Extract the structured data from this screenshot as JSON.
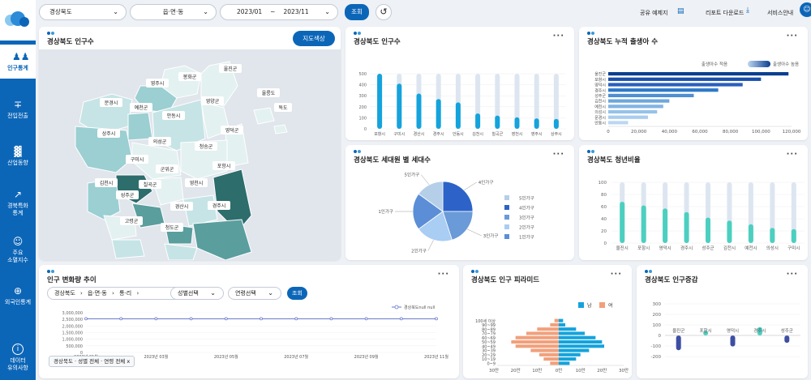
{
  "sidebar": {
    "items": [
      {
        "label": "인구통계",
        "icon": "people-icon"
      },
      {
        "label": "전입전출",
        "icon": "plus-minus-icon"
      },
      {
        "label": "산업동향",
        "icon": "factory-icon"
      },
      {
        "label": "경북특화\n통계",
        "icon": "chart-up-icon"
      },
      {
        "label": "주요\n소멸지수",
        "icon": "person-gear-icon"
      },
      {
        "label": "외국인통계",
        "icon": "globe-people-icon"
      },
      {
        "label": "데이터\n유의사항",
        "icon": "info-icon"
      }
    ]
  },
  "topbar": {
    "region": "경상북도",
    "district": "읍·면·동",
    "start": "2023/01",
    "tilde": "~",
    "end": "2023/11",
    "search": "조회",
    "share": "공유 예제지",
    "report": "리포트 다운로드",
    "guide": "서비스안내"
  },
  "map": {
    "title": "경상북도 인구수",
    "button": "지도색상",
    "regions": [
      "울진군",
      "봉화군",
      "영주시",
      "울릉도",
      "독도",
      "문경시",
      "예천군",
      "영양군",
      "안동시",
      "상주시",
      "영덕군",
      "의성군",
      "청송군",
      "구미시",
      "군위군",
      "포항시",
      "김천시",
      "칠곡군",
      "영천시",
      "성주군",
      "경산시",
      "경주시",
      "고령군",
      "청도군"
    ]
  },
  "pop": {
    "title": "경상북도 인구수",
    "yticks": [
      "500",
      "400",
      "300",
      "200",
      "100",
      "0"
    ]
  },
  "birth": {
    "title": "경상북도 누적 출생아 수",
    "legend_low": "출생아수 적음",
    "legend_high": "출생아수 높음",
    "xticks": [
      "0",
      "20,000",
      "40,000",
      "60,000",
      "80,000",
      "100,000",
      "120,000"
    ]
  },
  "household": {
    "title": "경상북도 세대원 별 세대수",
    "labels": [
      "4인가구",
      "5인가구",
      "1인가구",
      "2인가구",
      "3인가구"
    ],
    "legend": [
      "5인가구",
      "4인가구",
      "3인가구",
      "2인가구",
      "1인가구"
    ]
  },
  "youth": {
    "title": "경상북도 청년비율",
    "yticks": [
      "100",
      "80",
      "60",
      "40",
      "20",
      "0"
    ]
  },
  "trend": {
    "title": "인구 변화량 추이",
    "b1": "경상북도",
    "b2": "읍·면·동",
    "b3": "통·리",
    "s1": "성별선택",
    "s2": "연령선택",
    "search": "조회",
    "legend": "경상북도null null",
    "yticks": [
      "3,000,000",
      "2,500,000",
      "2,000,000",
      "1,500,000",
      "1,000,000",
      "500,000",
      "0"
    ],
    "xticks": [
      "2023년 01월",
      "2023년 03월",
      "2023년 05월",
      "2023년 07월",
      "2023년 09월",
      "2023년 11월"
    ],
    "tag": "경상북도 · 성별 전체 · 연령 전체",
    "tag_x": "x"
  },
  "pyramid": {
    "title": "경상북도 인구 피라미드",
    "male": "남",
    "female": "여",
    "ages": [
      "100세 이상",
      "90~99",
      "80~89",
      "70~79",
      "60~69",
      "50~59",
      "40~49",
      "30~39",
      "20~29",
      "10~19",
      "0~9"
    ],
    "xticks": [
      "30만",
      "20만",
      "10만",
      "0만",
      "10만",
      "20만",
      "30만"
    ]
  },
  "change": {
    "title": "경상북도 인구증감",
    "yticks": [
      "300",
      "200",
      "100",
      "0",
      "-100",
      "-200"
    ],
    "categories": [
      "울진군",
      "포항시",
      "영덕시",
      "경주시",
      "성주군"
    ]
  },
  "chart_data": [
    {
      "type": "bar",
      "title": "경상북도 인구수",
      "categories": [
        "포항시",
        "구미시",
        "경산시",
        "경주시",
        "안동시",
        "김천시",
        "칠곡군",
        "영천시",
        "영주시",
        "상주시"
      ],
      "values": [
        500,
        410,
        320,
        270,
        240,
        140,
        120,
        105,
        95,
        90
      ],
      "ylim": [
        0,
        500
      ]
    },
    {
      "type": "bar",
      "title": "경상북도 누적 출생아 수",
      "categories": [
        "울진군",
        "포항시",
        "영덕시",
        "경주시",
        "성주군",
        "김천시",
        "예천시",
        "의성시",
        "문경시",
        "안동시"
      ],
      "values": [
        118000,
        100000,
        88000,
        72000,
        56000,
        40000,
        36000,
        32000,
        26000,
        13000
      ],
      "xlim": [
        0,
        120000
      ]
    },
    {
      "type": "pie",
      "title": "경상북도 세대원 별 세대수",
      "labels": [
        "4인가구",
        "3인가구",
        "2인가구",
        "1인가구",
        "5인가구"
      ],
      "values": [
        25,
        20,
        20,
        20,
        15
      ],
      "colors": [
        "#2d63c8",
        "#6a9ad8",
        "#a9cdf3",
        "#5b8ed6",
        "#b5cfe9"
      ]
    },
    {
      "type": "bar",
      "title": "경상북도 청년비율",
      "categories": [
        "울진시",
        "포항시",
        "영덕시",
        "경주시",
        "성주군",
        "김천시",
        "예천시",
        "의성시",
        "구미시"
      ],
      "values": [
        68,
        62,
        57,
        51,
        42,
        37,
        31,
        25,
        23
      ],
      "ylim": [
        0,
        100
      ]
    },
    {
      "type": "line",
      "title": "인구 변화량 추이",
      "x": [
        "2023년 01월",
        "2023년 02월",
        "2023년 03월",
        "2023년 04월",
        "2023년 05월",
        "2023년 06월",
        "2023년 07월",
        "2023년 08월",
        "2023년 09월",
        "2023년 10월",
        "2023년 11월"
      ],
      "values": [
        2550000,
        2550000,
        2550000,
        2550000,
        2550000,
        2550000,
        2550000,
        2550000,
        2550000,
        2550000,
        2550000
      ],
      "ylim": [
        0,
        3000000
      ],
      "series_name": "경상북도null null"
    },
    {
      "type": "bar",
      "title": "경상북도 인구 피라미드",
      "categories": [
        "100세 이상",
        "90~99",
        "80~89",
        "70~79",
        "60~69",
        "50~59",
        "40~49",
        "30~39",
        "20~29",
        "10~19",
        "0~9"
      ],
      "series": [
        {
          "name": "남",
          "values": [
            2,
            3,
            8,
            12,
            17,
            20,
            21,
            14,
            10,
            8,
            5
          ]
        },
        {
          "name": "여",
          "values": [
            2,
            4,
            10,
            15,
            20,
            22,
            20,
            13,
            9,
            7,
            4
          ]
        }
      ]
    },
    {
      "type": "bar",
      "title": "경상북도 인구증감",
      "categories": [
        "울진군",
        "포항시",
        "영덕시",
        "경주시",
        "성주군"
      ],
      "values": [
        -140,
        45,
        -105,
        80,
        -70
      ],
      "ylim": [
        -200,
        300
      ]
    }
  ]
}
